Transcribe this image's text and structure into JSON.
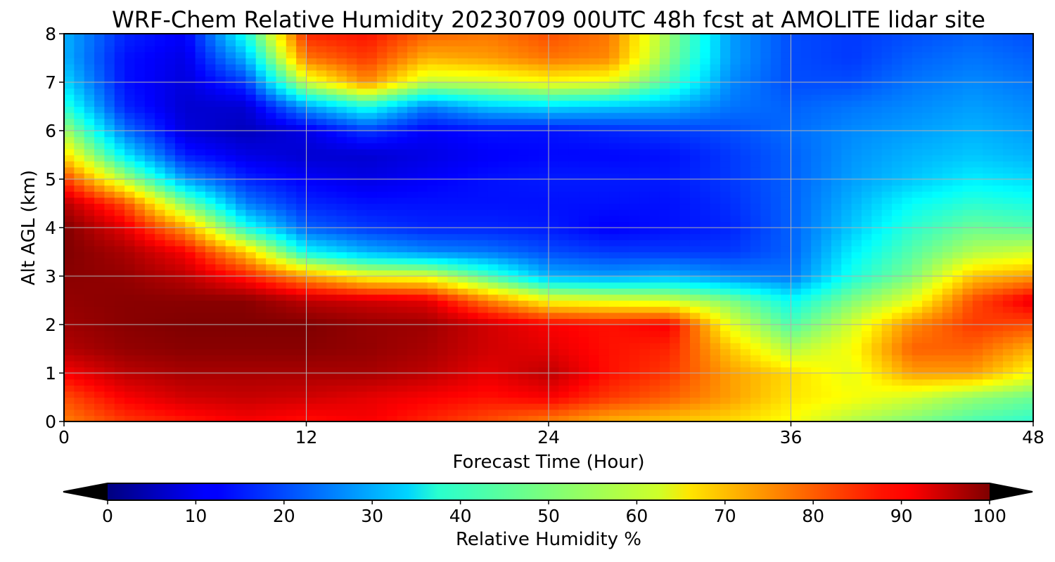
{
  "chart_data": {
    "type": "heatmap",
    "title": "WRF-Chem Relative Humidity 20230709 00UTC 48h fcst at AMOLITE lidar site",
    "xlabel": "Forecast Time (Hour)",
    "ylabel": "Alt AGL (km)",
    "xlim": [
      0,
      48
    ],
    "ylim": [
      0,
      8
    ],
    "x_ticks": [
      "0",
      "12",
      "24",
      "36",
      "48"
    ],
    "y_ticks": [
      "0",
      "1",
      "2",
      "3",
      "4",
      "5",
      "6",
      "7",
      "8"
    ],
    "grid": true,
    "colormap": "jet",
    "colorbar": {
      "label": "Relative Humidity %",
      "range": [
        0,
        100
      ],
      "ticks": [
        "0",
        "10",
        "20",
        "30",
        "40",
        "50",
        "60",
        "70",
        "80",
        "90",
        "100"
      ],
      "extend": "both",
      "orientation": "horizontal",
      "placement": "bottom"
    },
    "x": [
      0,
      3,
      6,
      9,
      12,
      15,
      18,
      21,
      24,
      27,
      30,
      33,
      36,
      39,
      42,
      45,
      48
    ],
    "y": [
      0,
      0.5,
      1,
      1.5,
      2,
      2.5,
      3,
      3.5,
      4,
      4.5,
      5,
      5.5,
      6,
      6.5,
      7,
      7.5,
      8
    ],
    "z": [
      [
        75,
        82,
        85,
        88,
        86,
        88,
        84,
        80,
        75,
        70,
        68,
        66,
        62,
        55,
        50,
        45,
        42
      ],
      [
        80,
        88,
        92,
        93,
        92,
        90,
        88,
        86,
        88,
        82,
        78,
        72,
        65,
        62,
        58,
        52,
        48
      ],
      [
        88,
        94,
        96,
        96,
        96,
        96,
        94,
        90,
        94,
        86,
        82,
        72,
        66,
        60,
        72,
        72,
        62
      ],
      [
        95,
        98,
        99,
        99,
        99,
        98,
        96,
        92,
        90,
        86,
        84,
        68,
        55,
        62,
        78,
        78,
        70
      ],
      [
        97,
        99,
        100,
        100,
        100,
        98,
        97,
        92,
        88,
        86,
        88,
        60,
        45,
        58,
        74,
        82,
        80
      ],
      [
        98,
        99,
        99,
        99,
        94,
        92,
        90,
        75,
        62,
        60,
        58,
        50,
        38,
        50,
        60,
        80,
        90
      ],
      [
        99,
        98,
        94,
        85,
        72,
        62,
        60,
        45,
        30,
        28,
        30,
        26,
        24,
        40,
        50,
        68,
        72
      ],
      [
        100,
        96,
        88,
        68,
        38,
        30,
        26,
        24,
        20,
        18,
        18,
        18,
        22,
        36,
        46,
        55,
        58
      ],
      [
        100,
        90,
        72,
        40,
        22,
        18,
        16,
        16,
        15,
        12,
        14,
        16,
        22,
        32,
        42,
        48,
        46
      ],
      [
        95,
        80,
        50,
        25,
        16,
        14,
        14,
        14,
        14,
        14,
        14,
        17,
        22,
        30,
        38,
        42,
        40
      ],
      [
        82,
        55,
        28,
        16,
        12,
        10,
        12,
        14,
        15,
        15,
        15,
        18,
        22,
        28,
        32,
        36,
        34
      ],
      [
        66,
        36,
        15,
        10,
        8,
        8,
        10,
        12,
        13,
        13,
        14,
        18,
        22,
        27,
        30,
        32,
        30
      ],
      [
        54,
        24,
        9,
        6,
        10,
        18,
        12,
        14,
        14,
        16,
        18,
        20,
        23,
        26,
        28,
        30,
        28
      ],
      [
        42,
        16,
        8,
        8,
        28,
        40,
        25,
        32,
        34,
        32,
        30,
        24,
        22,
        24,
        26,
        28,
        26
      ],
      [
        34,
        14,
        9,
        18,
        58,
        74,
        56,
        58,
        62,
        60,
        44,
        26,
        20,
        20,
        24,
        26,
        24
      ],
      [
        30,
        14,
        10,
        30,
        76,
        82,
        70,
        72,
        76,
        74,
        50,
        28,
        20,
        18,
        22,
        24,
        22
      ],
      [
        30,
        16,
        12,
        40,
        84,
        86,
        78,
        76,
        80,
        76,
        52,
        28,
        20,
        18,
        20,
        22,
        20
      ]
    ]
  }
}
